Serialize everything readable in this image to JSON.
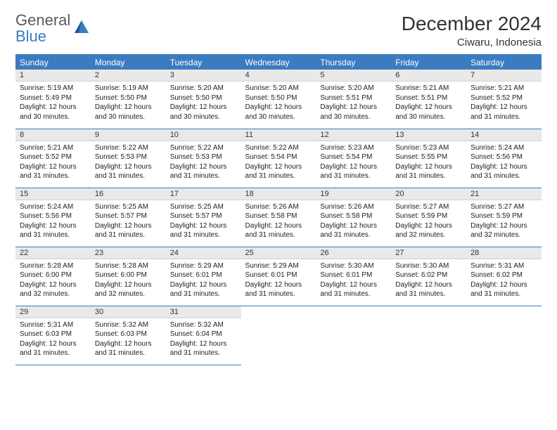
{
  "brand": {
    "part1": "General",
    "part2": "Blue"
  },
  "title": "December 2024",
  "location": "Ciwaru, Indonesia",
  "colors": {
    "header_bg": "#3b7bbf",
    "header_text": "#ffffff",
    "daynum_bg": "#e9e9e9",
    "rule": "#3b7bbf",
    "logo_gray": "#5a5a5a",
    "logo_blue": "#3b7bbf"
  },
  "weekdays": [
    "Sunday",
    "Monday",
    "Tuesday",
    "Wednesday",
    "Thursday",
    "Friday",
    "Saturday"
  ],
  "days": [
    {
      "n": "1",
      "sunrise": "5:19 AM",
      "sunset": "5:49 PM",
      "daylight": "12 hours and 30 minutes."
    },
    {
      "n": "2",
      "sunrise": "5:19 AM",
      "sunset": "5:50 PM",
      "daylight": "12 hours and 30 minutes."
    },
    {
      "n": "3",
      "sunrise": "5:20 AM",
      "sunset": "5:50 PM",
      "daylight": "12 hours and 30 minutes."
    },
    {
      "n": "4",
      "sunrise": "5:20 AM",
      "sunset": "5:50 PM",
      "daylight": "12 hours and 30 minutes."
    },
    {
      "n": "5",
      "sunrise": "5:20 AM",
      "sunset": "5:51 PM",
      "daylight": "12 hours and 30 minutes."
    },
    {
      "n": "6",
      "sunrise": "5:21 AM",
      "sunset": "5:51 PM",
      "daylight": "12 hours and 30 minutes."
    },
    {
      "n": "7",
      "sunrise": "5:21 AM",
      "sunset": "5:52 PM",
      "daylight": "12 hours and 31 minutes."
    },
    {
      "n": "8",
      "sunrise": "5:21 AM",
      "sunset": "5:52 PM",
      "daylight": "12 hours and 31 minutes."
    },
    {
      "n": "9",
      "sunrise": "5:22 AM",
      "sunset": "5:53 PM",
      "daylight": "12 hours and 31 minutes."
    },
    {
      "n": "10",
      "sunrise": "5:22 AM",
      "sunset": "5:53 PM",
      "daylight": "12 hours and 31 minutes."
    },
    {
      "n": "11",
      "sunrise": "5:22 AM",
      "sunset": "5:54 PM",
      "daylight": "12 hours and 31 minutes."
    },
    {
      "n": "12",
      "sunrise": "5:23 AM",
      "sunset": "5:54 PM",
      "daylight": "12 hours and 31 minutes."
    },
    {
      "n": "13",
      "sunrise": "5:23 AM",
      "sunset": "5:55 PM",
      "daylight": "12 hours and 31 minutes."
    },
    {
      "n": "14",
      "sunrise": "5:24 AM",
      "sunset": "5:56 PM",
      "daylight": "12 hours and 31 minutes."
    },
    {
      "n": "15",
      "sunrise": "5:24 AM",
      "sunset": "5:56 PM",
      "daylight": "12 hours and 31 minutes."
    },
    {
      "n": "16",
      "sunrise": "5:25 AM",
      "sunset": "5:57 PM",
      "daylight": "12 hours and 31 minutes."
    },
    {
      "n": "17",
      "sunrise": "5:25 AM",
      "sunset": "5:57 PM",
      "daylight": "12 hours and 31 minutes."
    },
    {
      "n": "18",
      "sunrise": "5:26 AM",
      "sunset": "5:58 PM",
      "daylight": "12 hours and 31 minutes."
    },
    {
      "n": "19",
      "sunrise": "5:26 AM",
      "sunset": "5:58 PM",
      "daylight": "12 hours and 31 minutes."
    },
    {
      "n": "20",
      "sunrise": "5:27 AM",
      "sunset": "5:59 PM",
      "daylight": "12 hours and 32 minutes."
    },
    {
      "n": "21",
      "sunrise": "5:27 AM",
      "sunset": "5:59 PM",
      "daylight": "12 hours and 32 minutes."
    },
    {
      "n": "22",
      "sunrise": "5:28 AM",
      "sunset": "6:00 PM",
      "daylight": "12 hours and 32 minutes."
    },
    {
      "n": "23",
      "sunrise": "5:28 AM",
      "sunset": "6:00 PM",
      "daylight": "12 hours and 32 minutes."
    },
    {
      "n": "24",
      "sunrise": "5:29 AM",
      "sunset": "6:01 PM",
      "daylight": "12 hours and 31 minutes."
    },
    {
      "n": "25",
      "sunrise": "5:29 AM",
      "sunset": "6:01 PM",
      "daylight": "12 hours and 31 minutes."
    },
    {
      "n": "26",
      "sunrise": "5:30 AM",
      "sunset": "6:01 PM",
      "daylight": "12 hours and 31 minutes."
    },
    {
      "n": "27",
      "sunrise": "5:30 AM",
      "sunset": "6:02 PM",
      "daylight": "12 hours and 31 minutes."
    },
    {
      "n": "28",
      "sunrise": "5:31 AM",
      "sunset": "6:02 PM",
      "daylight": "12 hours and 31 minutes."
    },
    {
      "n": "29",
      "sunrise": "5:31 AM",
      "sunset": "6:03 PM",
      "daylight": "12 hours and 31 minutes."
    },
    {
      "n": "30",
      "sunrise": "5:32 AM",
      "sunset": "6:03 PM",
      "daylight": "12 hours and 31 minutes."
    },
    {
      "n": "31",
      "sunrise": "5:32 AM",
      "sunset": "6:04 PM",
      "daylight": "12 hours and 31 minutes."
    }
  ],
  "labels": {
    "sunrise": "Sunrise:",
    "sunset": "Sunset:",
    "daylight": "Daylight:"
  }
}
